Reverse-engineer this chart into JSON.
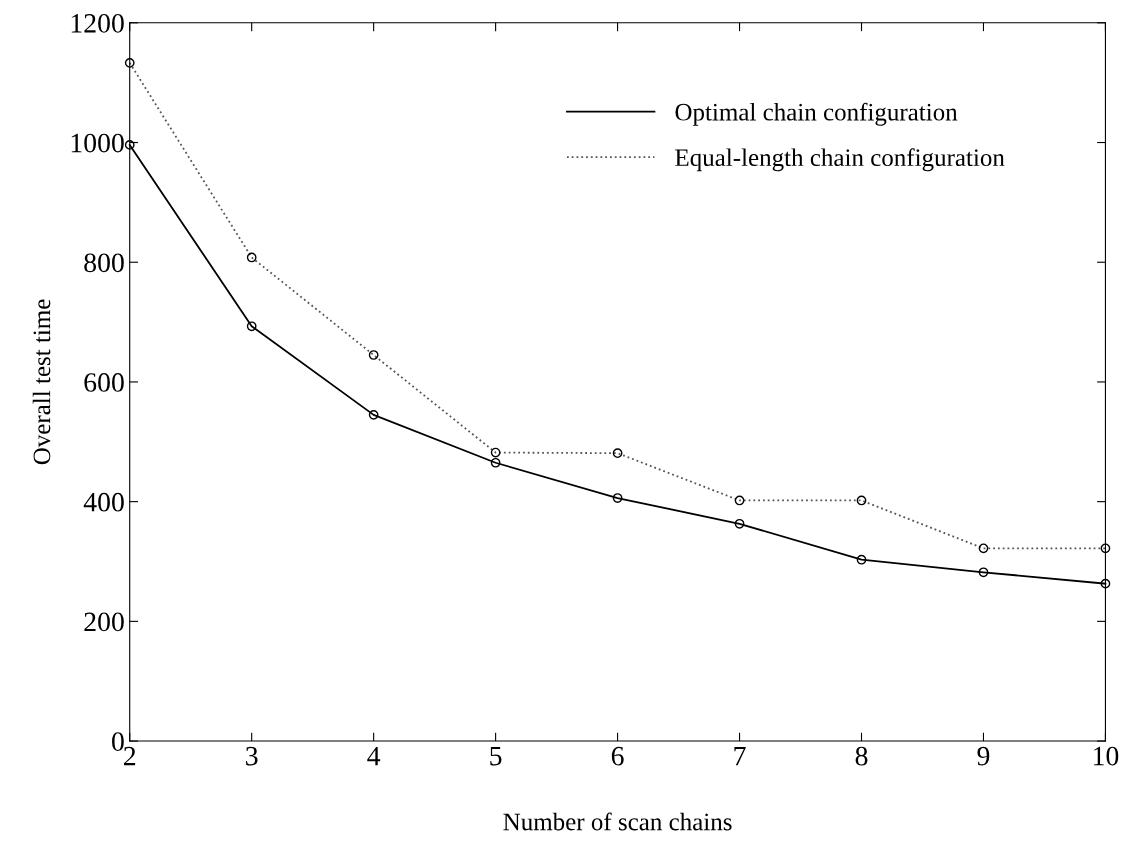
{
  "chart_data": {
    "type": "line",
    "xlabel": "Number of scan chains",
    "ylabel": "Overall test time",
    "x": [
      2,
      3,
      4,
      5,
      6,
      7,
      8,
      9,
      10
    ],
    "series": [
      {
        "name": "Optimal chain configuration",
        "color": "#000000",
        "line_style": "solid",
        "values": [
          996,
          693,
          545,
          465,
          406,
          363,
          303,
          282,
          263
        ]
      },
      {
        "name": "Equal-length chain configuration",
        "color": "#555555",
        "line_style": "dotted",
        "values": [
          1133,
          808,
          645,
          482,
          481,
          402,
          402,
          322,
          322
        ]
      }
    ],
    "marker": "circle",
    "xlim": [
      2,
      10
    ],
    "xticks": [
      2,
      3,
      4,
      5,
      6,
      7,
      8,
      9,
      10
    ],
    "ylim": [
      0,
      1200
    ],
    "yticks": [
      0,
      200,
      400,
      600,
      800,
      1000,
      1200
    ],
    "grid": false,
    "legend": "top right"
  }
}
